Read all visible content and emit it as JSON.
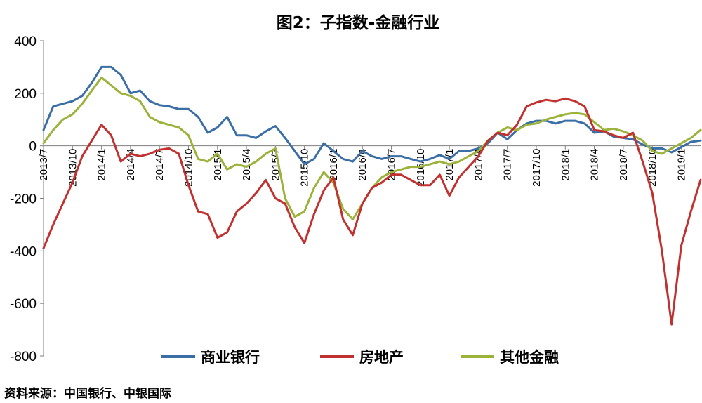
{
  "chart_data": {
    "type": "line",
    "title": "图2：子指数-金融行业",
    "ylim": [
      -800,
      400
    ],
    "yticks": [
      400,
      200,
      0,
      -200,
      -400,
      -600,
      -800
    ],
    "xlim": [
      "2013-07",
      "2019-03"
    ],
    "xtick_labels": [
      "2013/7",
      "2013/10",
      "2014/1",
      "2014/4",
      "2014/7",
      "2014/10",
      "2015/1",
      "2015/4",
      "2015/7",
      "2015/10",
      "2016/1",
      "2016/4",
      "2016/7",
      "2016/10",
      "2017/1",
      "2017/4",
      "2017/7",
      "2017/10",
      "2018/1",
      "2018/4",
      "2018/7",
      "2018/10",
      "2019/1"
    ],
    "legend_position": "bottom",
    "source": "资料来源：中国银行、中银国际",
    "series": [
      {
        "name": "商业银行",
        "color": "#3A6EA5",
        "x": [
          "2013-07",
          "2013-08",
          "2013-09",
          "2013-10",
          "2013-11",
          "2013-12",
          "2014-01",
          "2014-02",
          "2014-03",
          "2014-04",
          "2014-05",
          "2014-06",
          "2014-07",
          "2014-08",
          "2014-09",
          "2014-10",
          "2014-11",
          "2014-12",
          "2015-01",
          "2015-02",
          "2015-03",
          "2015-04",
          "2015-05",
          "2015-06",
          "2015-07",
          "2015-08",
          "2015-09",
          "2015-10",
          "2015-11",
          "2015-12",
          "2016-01",
          "2016-02",
          "2016-03",
          "2016-04",
          "2016-05",
          "2016-06",
          "2016-07",
          "2016-08",
          "2016-09",
          "2016-10",
          "2016-11",
          "2016-12",
          "2017-01",
          "2017-02",
          "2017-03",
          "2017-04",
          "2017-05",
          "2017-06",
          "2017-07",
          "2017-08",
          "2017-09",
          "2017-10",
          "2017-11",
          "2017-12",
          "2018-01",
          "2018-02",
          "2018-03",
          "2018-04",
          "2018-05",
          "2018-06",
          "2018-07",
          "2018-08",
          "2018-09",
          "2018-10",
          "2018-11",
          "2018-12",
          "2019-01",
          "2019-02",
          "2019-03"
        ],
        "values": [
          60,
          150,
          160,
          170,
          190,
          240,
          300,
          300,
          270,
          200,
          210,
          170,
          155,
          150,
          140,
          140,
          110,
          50,
          70,
          110,
          40,
          40,
          30,
          55,
          75,
          30,
          -20,
          -70,
          -50,
          10,
          -20,
          -50,
          -60,
          -20,
          -40,
          -50,
          -40,
          -40,
          -50,
          -60,
          -50,
          -35,
          -50,
          -20,
          -20,
          -10,
          10,
          50,
          25,
          60,
          85,
          95,
          95,
          85,
          95,
          95,
          85,
          50,
          55,
          35,
          30,
          25,
          5,
          -10,
          -10,
          -25,
          -5,
          15,
          20
        ]
      },
      {
        "name": "房地产",
        "color": "#C0312F",
        "x": [
          "2013-07",
          "2013-08",
          "2013-09",
          "2013-10",
          "2013-11",
          "2013-12",
          "2014-01",
          "2014-02",
          "2014-03",
          "2014-04",
          "2014-05",
          "2014-06",
          "2014-07",
          "2014-08",
          "2014-09",
          "2014-10",
          "2014-11",
          "2014-12",
          "2015-01",
          "2015-02",
          "2015-03",
          "2015-04",
          "2015-05",
          "2015-06",
          "2015-07",
          "2015-08",
          "2015-09",
          "2015-10",
          "2015-11",
          "2015-12",
          "2016-01",
          "2016-02",
          "2016-03",
          "2016-04",
          "2016-05",
          "2016-06",
          "2016-07",
          "2016-08",
          "2016-09",
          "2016-10",
          "2016-11",
          "2016-12",
          "2017-01",
          "2017-02",
          "2017-03",
          "2017-04",
          "2017-05",
          "2017-06",
          "2017-07",
          "2017-08",
          "2017-09",
          "2017-10",
          "2017-11",
          "2017-12",
          "2018-01",
          "2018-02",
          "2018-03",
          "2018-04",
          "2018-05",
          "2018-06",
          "2018-07",
          "2018-08",
          "2018-09",
          "2018-10",
          "2018-11",
          "2018-12",
          "2019-01",
          "2019-02",
          "2019-03"
        ],
        "values": [
          -390,
          -300,
          -220,
          -140,
          -40,
          20,
          80,
          40,
          -60,
          -30,
          -40,
          -30,
          -15,
          -10,
          -30,
          -150,
          -250,
          -260,
          -350,
          -330,
          -250,
          -220,
          -180,
          -130,
          -200,
          -220,
          -310,
          -370,
          -260,
          -170,
          -120,
          -280,
          -340,
          -220,
          -160,
          -140,
          -110,
          -110,
          -130,
          -150,
          -150,
          -110,
          -190,
          -120,
          -80,
          -40,
          20,
          50,
          40,
          80,
          150,
          165,
          175,
          170,
          180,
          170,
          150,
          60,
          55,
          40,
          30,
          50,
          -60,
          -180,
          -400,
          -680,
          -380,
          -250,
          -130
        ]
      },
      {
        "name": "其他金融",
        "color": "#9BB33A",
        "x": [
          "2013-07",
          "2013-08",
          "2013-09",
          "2013-10",
          "2013-11",
          "2013-12",
          "2014-01",
          "2014-02",
          "2014-03",
          "2014-04",
          "2014-05",
          "2014-06",
          "2014-07",
          "2014-08",
          "2014-09",
          "2014-10",
          "2014-11",
          "2014-12",
          "2015-01",
          "2015-02",
          "2015-03",
          "2015-04",
          "2015-05",
          "2015-06",
          "2015-07",
          "2015-08",
          "2015-09",
          "2015-10",
          "2015-11",
          "2015-12",
          "2016-01",
          "2016-02",
          "2016-03",
          "2016-04",
          "2016-05",
          "2016-06",
          "2016-07",
          "2016-08",
          "2016-09",
          "2016-10",
          "2016-11",
          "2016-12",
          "2017-01",
          "2017-02",
          "2017-03",
          "2017-04",
          "2017-05",
          "2017-06",
          "2017-07",
          "2017-08",
          "2017-09",
          "2017-10",
          "2017-11",
          "2017-12",
          "2018-01",
          "2018-02",
          "2018-03",
          "2018-04",
          "2018-05",
          "2018-06",
          "2018-07",
          "2018-08",
          "2018-09",
          "2018-10",
          "2018-11",
          "2018-12",
          "2019-01",
          "2019-02",
          "2019-03"
        ],
        "values": [
          10,
          60,
          100,
          120,
          160,
          210,
          260,
          230,
          200,
          190,
          170,
          110,
          90,
          80,
          70,
          40,
          -50,
          -60,
          -30,
          -90,
          -70,
          -80,
          -60,
          -30,
          -10,
          -200,
          -270,
          -250,
          -160,
          -100,
          -140,
          -240,
          -280,
          -220,
          -160,
          -120,
          -100,
          -90,
          -80,
          -80,
          -70,
          -60,
          -70,
          -60,
          -40,
          -20,
          20,
          50,
          70,
          60,
          80,
          85,
          100,
          110,
          120,
          125,
          120,
          90,
          60,
          65,
          55,
          40,
          20,
          -20,
          -30,
          -10,
          10,
          30,
          60
        ]
      }
    ]
  }
}
